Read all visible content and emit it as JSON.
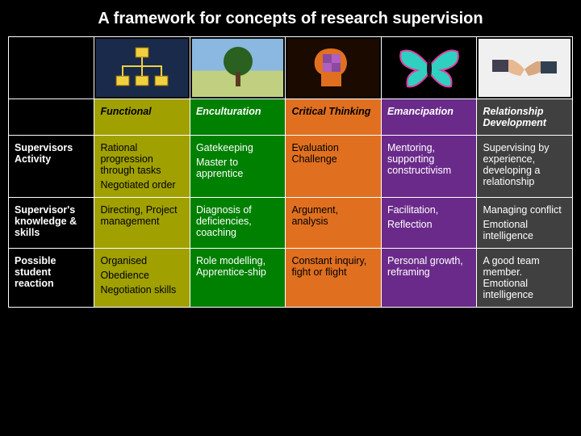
{
  "title": "A framework for concepts of research supervision",
  "colors": {
    "background": "#000000",
    "border": "#ffffff",
    "c1": "#a0a000",
    "c2": "#008000",
    "c3": "#e07020",
    "c4": "#6a2a8a",
    "c5": "#404040"
  },
  "columns": [
    {
      "id": "c1",
      "header": "Functional",
      "icon": "org-chart"
    },
    {
      "id": "c2",
      "header": "Enculturation",
      "icon": "tree"
    },
    {
      "id": "c3",
      "header": "Critical Thinking",
      "icon": "head-puzzle"
    },
    {
      "id": "c4",
      "header": "Emancipation",
      "icon": "butterfly"
    },
    {
      "id": "c5",
      "header": "Relationship Development",
      "icon": "handshake"
    }
  ],
  "rows": [
    {
      "label": "Supervisors Activity",
      "cells": [
        "Rational progression through tasks\nNegotiated order",
        "Gatekeeping\nMaster to apprentice",
        "Evaluation Challenge",
        "Mentoring, supporting constructivism",
        "Supervising by experience, developing a relationship"
      ]
    },
    {
      "label": "Supervisor's knowledge & skills",
      "cells": [
        "Directing, Project management",
        "Diagnosis of deficiencies, coaching",
        "Argument, analysis",
        "Facilitation,\nReflection",
        "Managing conflict\nEmotional intelligence"
      ]
    },
    {
      "label": "Possible student reaction",
      "cells": [
        "Organised\nObedience\nNegotiation skills",
        "Role modelling, Apprentice-ship",
        "Constant inquiry, fight or flight",
        "Personal growth, reframing",
        "A good team member. Emotional intelligence"
      ]
    }
  ]
}
